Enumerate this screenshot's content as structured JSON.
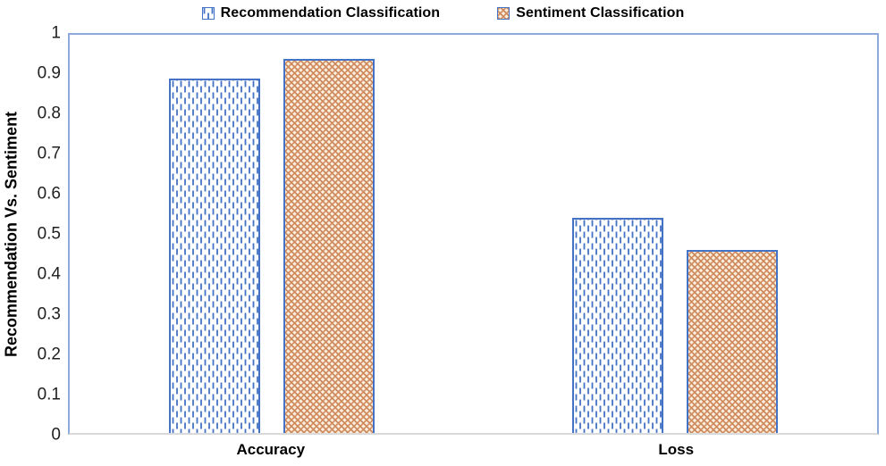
{
  "chart_data": {
    "type": "bar",
    "title": "",
    "categories": [
      "Accuracy",
      "Loss"
    ],
    "series": [
      {
        "name": "Recommendation Classification",
        "values": [
          0.89,
          0.54
        ]
      },
      {
        "name": "Sentiment Classification",
        "values": [
          0.94,
          0.46
        ]
      }
    ],
    "xlabel": "",
    "ylabel": "Recommendation Vs. Sentiment",
    "ylim": [
      0,
      1
    ],
    "yticks": [
      0,
      0.1,
      0.2,
      0.3,
      0.4,
      0.5,
      0.6,
      0.7,
      0.8,
      0.9,
      1
    ],
    "ytick_labels": [
      "0",
      "0.1",
      "0.2",
      "0.3",
      "0.4",
      "0.5",
      "0.6",
      "0.7",
      "0.8",
      "0.9",
      "1"
    ],
    "grid": false,
    "legend_position": "top-center"
  },
  "colors": {
    "recommendation_accent": "#4472C4",
    "sentiment_pattern_orange": "#D98E5F",
    "plot_frame_blue": "#8EA9DB",
    "baseline_gray": "#D9D9D9",
    "text": "#000000"
  }
}
